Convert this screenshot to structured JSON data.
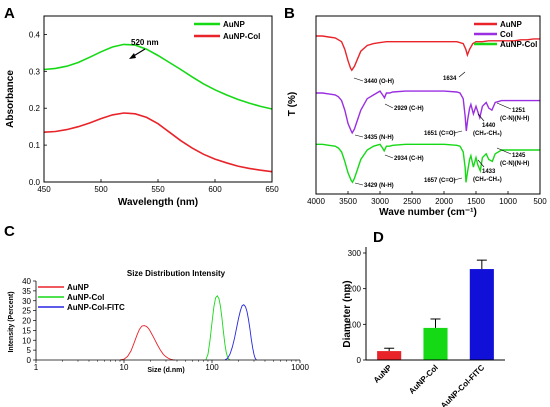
{
  "colors": {
    "green": "#16d916",
    "red": "#e8242a",
    "purple": "#9a2fe2",
    "blue": "#2626e0",
    "darkblue": "#1010d8"
  },
  "chart_data": [
    {
      "panel": "A",
      "type": "line",
      "xlabel": "Wavelength (nm)",
      "ylabel": "Absorbance",
      "xlim": [
        450,
        650
      ],
      "ylim": [
        0,
        0.45
      ],
      "xticks": [
        "450",
        "500",
        "550",
        "600",
        "650"
      ],
      "yticks": [
        "0.0",
        "0.1",
        "0.2",
        "0.3",
        "0.4"
      ],
      "annotation": "520 nm",
      "series": [
        {
          "name": "AuNP",
          "color": "#16d916",
          "x": [
            450,
            460,
            470,
            480,
            490,
            500,
            510,
            520,
            530,
            540,
            550,
            560,
            570,
            580,
            590,
            600,
            610,
            620,
            630,
            640,
            650
          ],
          "y": [
            0.305,
            0.308,
            0.314,
            0.324,
            0.338,
            0.353,
            0.366,
            0.373,
            0.371,
            0.36,
            0.343,
            0.324,
            0.305,
            0.285,
            0.266,
            0.25,
            0.236,
            0.224,
            0.214,
            0.205,
            0.198
          ]
        },
        {
          "name": "AuNP-Col",
          "color": "#e8242a",
          "x": [
            450,
            460,
            470,
            480,
            490,
            500,
            510,
            520,
            530,
            540,
            550,
            560,
            570,
            580,
            590,
            600,
            610,
            620,
            630,
            640,
            650
          ],
          "y": [
            0.135,
            0.137,
            0.142,
            0.15,
            0.16,
            0.172,
            0.182,
            0.187,
            0.185,
            0.175,
            0.158,
            0.135,
            0.112,
            0.092,
            0.075,
            0.062,
            0.052,
            0.043,
            0.037,
            0.032,
            0.028
          ]
        }
      ]
    },
    {
      "panel": "B",
      "type": "line",
      "xlabel": "Wave number (cm⁻¹)",
      "ylabel": "T (%)",
      "xlim": [
        4000,
        500
      ],
      "xticks": [
        "4000",
        "3500",
        "3000",
        "2500",
        "2000",
        "1500",
        "1000",
        "500"
      ],
      "series": [
        {
          "name": "AuNP",
          "color": "#e8242a",
          "x": [
            4000,
            3900,
            3800,
            3700,
            3600,
            3550,
            3500,
            3460,
            3440,
            3400,
            3350,
            3300,
            3200,
            3100,
            3000,
            2900,
            2800,
            2600,
            2400,
            2200,
            2000,
            1800,
            1700,
            1660,
            1634,
            1600,
            1550,
            1500,
            1400,
            1300,
            1200,
            1100,
            1000,
            900,
            800,
            700,
            600,
            500
          ],
          "y": [
            10,
            10,
            10.5,
            11,
            13,
            17,
            23,
            27,
            28,
            26,
            22,
            18,
            15,
            14,
            13.5,
            13,
            13,
            13,
            13,
            13,
            13,
            13,
            14,
            17,
            20,
            17,
            14,
            13,
            13,
            12.5,
            12.5,
            12.5,
            12.5,
            12.5,
            12,
            12,
            11.5,
            11.5
          ]
        },
        {
          "name": "Col",
          "color": "#9a2fe2",
          "x": [
            4000,
            3900,
            3800,
            3700,
            3650,
            3600,
            3550,
            3500,
            3450,
            3435,
            3400,
            3350,
            3300,
            3200,
            3100,
            3000,
            2960,
            2929,
            2900,
            2850,
            2800,
            2600,
            2400,
            2200,
            2000,
            1800,
            1750,
            1700,
            1670,
            1651,
            1630,
            1600,
            1580,
            1540,
            1500,
            1470,
            1440,
            1400,
            1340,
            1300,
            1251,
            1200,
            1100,
            1000,
            900,
            800,
            700,
            600,
            500
          ],
          "y": [
            40,
            40,
            40.5,
            41,
            42,
            44,
            49,
            56,
            60,
            61,
            59,
            54,
            49,
            43,
            41,
            39,
            41,
            42.5,
            40,
            40,
            39.5,
            39,
            39,
            39,
            39,
            39.5,
            40,
            43,
            52,
            60,
            54,
            48,
            46,
            51,
            47,
            50,
            53,
            47,
            45,
            48,
            49,
            45,
            44,
            44,
            44,
            44,
            44,
            44,
            44
          ]
        },
        {
          "name": "AuNP-Col",
          "color": "#16d916",
          "x": [
            4000,
            3900,
            3800,
            3700,
            3650,
            3600,
            3550,
            3500,
            3450,
            3429,
            3400,
            3350,
            3300,
            3200,
            3100,
            3000,
            2960,
            2934,
            2900,
            2850,
            2800,
            2600,
            2400,
            2200,
            2000,
            1800,
            1750,
            1700,
            1670,
            1657,
            1630,
            1600,
            1580,
            1540,
            1500,
            1470,
            1433,
            1400,
            1340,
            1300,
            1245,
            1200,
            1100,
            1000,
            900,
            800,
            700,
            600,
            500
          ],
          "y": [
            67,
            67,
            67.5,
            68,
            69,
            71,
            76,
            82,
            86,
            87,
            85,
            80,
            75,
            70,
            68,
            67,
            69,
            70.5,
            68,
            68,
            67.5,
            67,
            67,
            67,
            67,
            67.5,
            68,
            71,
            79,
            87,
            81,
            75,
            73,
            79,
            74,
            78,
            81,
            74,
            72,
            75,
            76,
            72,
            70,
            70,
            70,
            70,
            70,
            70,
            70
          ]
        }
      ],
      "annotations": {
        "a1": "3440 (O-H)",
        "a2": "1634",
        "a3": "2929 (C-H)",
        "a4": "3435 (N-H)",
        "a5": "1651 (C=O)",
        "a6": "1440",
        "a6b": "(CH₂-CH₃)",
        "a7": "1251",
        "a7b": "(C-N)(N-H)",
        "a8": "2934 (C-H)",
        "a9": "3429 (N-H)",
        "a10": "1657 (C=O)",
        "a11": "1433",
        "a11b": "(CH₂-CH₃)",
        "a12": "1245",
        "a12b": "(C-N)(N-H)"
      }
    },
    {
      "panel": "C",
      "type": "line",
      "title": "Size Distribution Intensity",
      "xlabel": "Size (d.nm)",
      "ylabel": "Intensity (Percent)",
      "xscale": "log",
      "xlim": [
        1,
        1000
      ],
      "ylim": [
        0,
        40
      ],
      "xticks": [
        "1",
        "10",
        "100",
        "1000"
      ],
      "yticks": [
        "0",
        "5",
        "10",
        "15",
        "20",
        "25",
        "30",
        "35",
        "40"
      ],
      "series": [
        {
          "name": "AuNP",
          "color": "#e8242a",
          "x": [
            9,
            10,
            11,
            12,
            13,
            14,
            15,
            16,
            17,
            18,
            19,
            20,
            22,
            24,
            26,
            28,
            30,
            32,
            34,
            36,
            38
          ],
          "y": [
            0,
            0.4,
            1.8,
            4.6,
            8.5,
            12.5,
            15.6,
            17.2,
            17.4,
            17.0,
            16.0,
            14.4,
            11.0,
            7.6,
            4.9,
            2.9,
            1.6,
            0.8,
            0.35,
            0.1,
            0
          ]
        },
        {
          "name": "AuNP-Col",
          "color": "#16d916",
          "x": [
            85,
            90,
            95,
            100,
            105,
            110,
            115,
            120,
            125,
            130,
            135,
            140,
            145,
            150,
            155,
            160
          ],
          "y": [
            0,
            3,
            10,
            19,
            27,
            31.5,
            32.5,
            31,
            27,
            21,
            14,
            8,
            4,
            1.5,
            0.4,
            0
          ]
        },
        {
          "name": "AuNP-Col-FITC",
          "color": "#2626e0",
          "x": [
            140,
            150,
            160,
            170,
            180,
            190,
            200,
            210,
            220,
            230,
            240,
            250,
            260,
            270,
            280,
            290,
            300,
            310,
            320
          ],
          "y": [
            0,
            0.8,
            3,
            6.5,
            11,
            16,
            21,
            25,
            27.5,
            28,
            27,
            24.5,
            20.5,
            15.5,
            10.5,
            6,
            2.8,
            0.8,
            0
          ]
        }
      ]
    },
    {
      "panel": "D",
      "type": "bar",
      "ylabel": "Diameter (nm)",
      "ylim": [
        0,
        300
      ],
      "yticks": [
        "0",
        "100",
        "200",
        "300"
      ],
      "categories": [
        "AuNP",
        "AuNP-Col",
        "AuNP-Col-FITC"
      ],
      "values": [
        25,
        90,
        255
      ],
      "errors": [
        8,
        25,
        25
      ],
      "colors": [
        "#e8242a",
        "#16d916",
        "#1010d8"
      ]
    }
  ],
  "panels": {
    "a": "A",
    "b": "B",
    "c": "C",
    "d": "D"
  }
}
